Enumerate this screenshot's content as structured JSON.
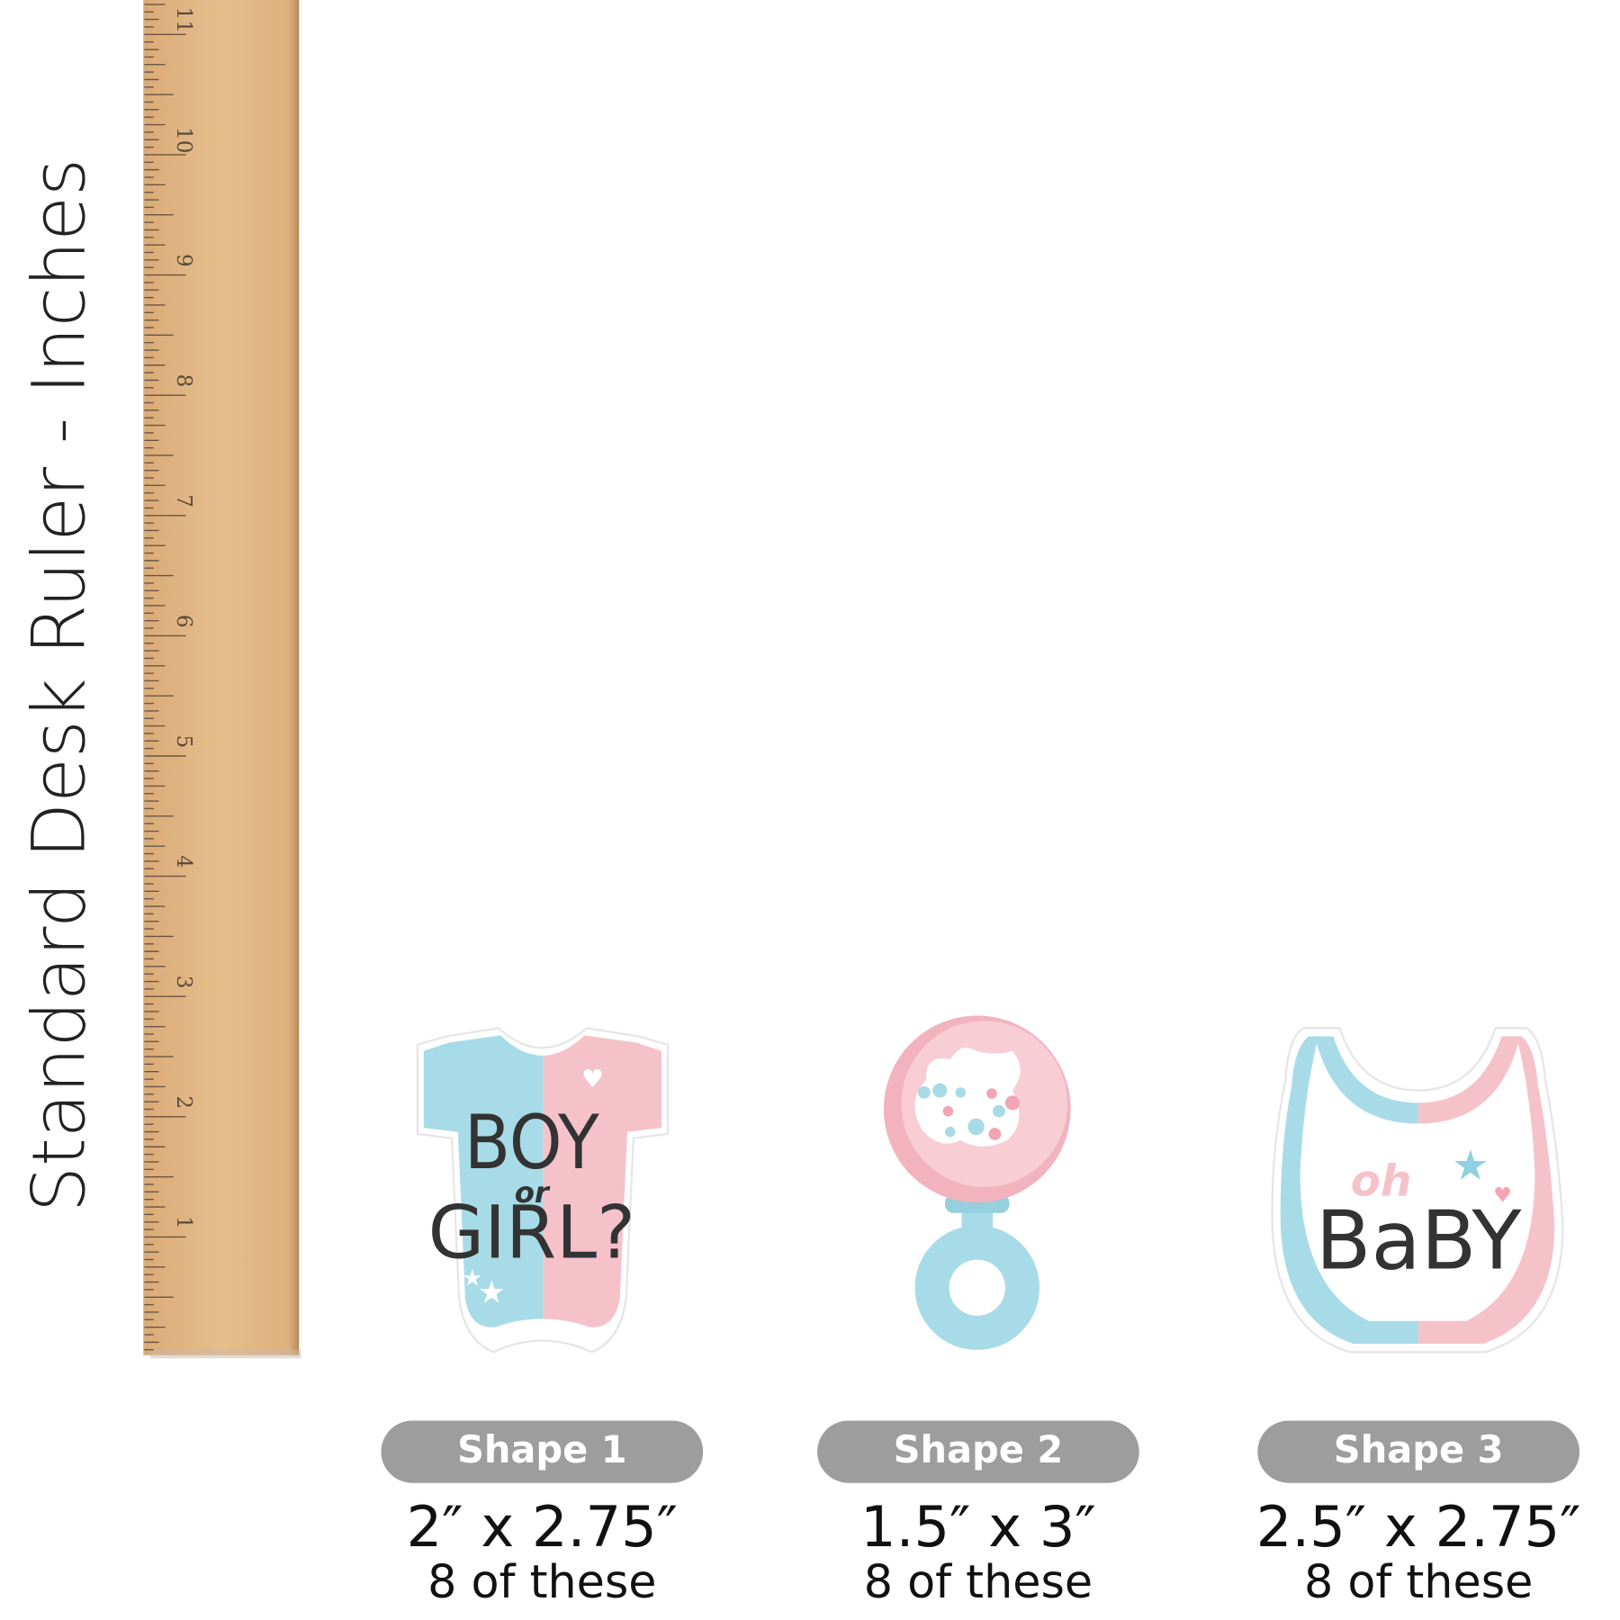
{
  "ruler": {
    "label": "Standard Desk Ruler - Inches",
    "numbers": [
      1,
      2,
      3,
      4,
      5,
      6,
      7,
      8,
      9,
      10,
      11
    ]
  },
  "shapes": [
    {
      "label": "Shape 1",
      "size": "2″ x 2.75″",
      "count": "8 of these",
      "art": [
        "BOY",
        "or",
        "GIRL?"
      ]
    },
    {
      "label": "Shape 2",
      "size": "1.5″ x 3″",
      "count": "8 of these"
    },
    {
      "label": "Shape 3",
      "size": "2.5″ x 2.75″",
      "count": "8 of these",
      "art": [
        "oh",
        "BaBY"
      ]
    }
  ]
}
